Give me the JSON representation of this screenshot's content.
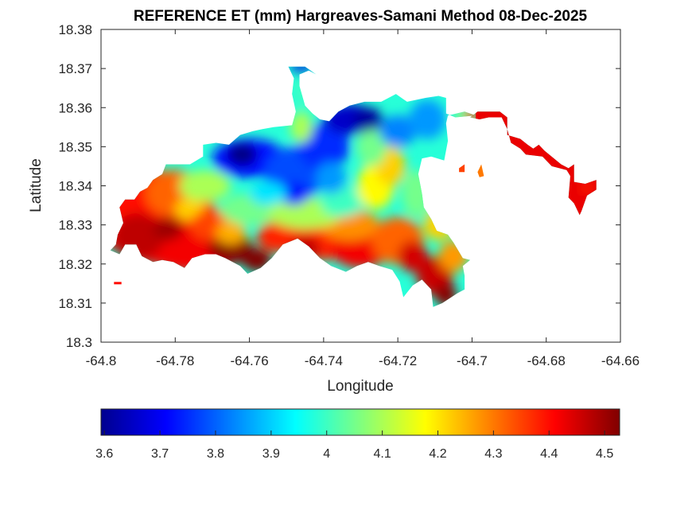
{
  "chart_data": {
    "type": "heatmap",
    "title": "REFERENCE ET (mm) Hargreaves-Samani Method  08-Dec-2025",
    "xlabel": "Longitude",
    "ylabel": "Latitude",
    "xlim": [
      -64.8,
      -64.66
    ],
    "ylim": [
      18.3,
      18.38
    ],
    "xticks": [
      -64.8,
      -64.78,
      -64.76,
      -64.74,
      -64.72,
      -64.7,
      -64.68,
      -64.66
    ],
    "xtick_labels": [
      "-64.8",
      "-64.78",
      "-64.76",
      "-64.74",
      "-64.72",
      "-64.7",
      "-64.68",
      "-64.66"
    ],
    "yticks": [
      18.3,
      18.31,
      18.32,
      18.33,
      18.34,
      18.35,
      18.36,
      18.37,
      18.38
    ],
    "ytick_labels": [
      "18.3",
      "18.31",
      "18.32",
      "18.33",
      "18.34",
      "18.35",
      "18.36",
      "18.37",
      "18.38"
    ],
    "grid": false,
    "colormap": "jet",
    "colorbar": {
      "orientation": "horizontal",
      "placement": "bottom",
      "range": [
        3.594,
        4.527
      ],
      "ticks": [
        3.6,
        3.7,
        3.8,
        3.9,
        4.0,
        4.1,
        4.2,
        4.3,
        4.4,
        4.5
      ],
      "tick_labels": [
        "3.6",
        "3.7",
        "3.8",
        "3.9",
        "4",
        "4.1",
        "4.2",
        "4.3",
        "4.4",
        "4.5"
      ]
    },
    "regions": [
      {
        "name": "west-red-zone",
        "lon": [
          -64.795,
          -64.765
        ],
        "lat": [
          18.318,
          18.345
        ],
        "value": 4.42
      },
      {
        "name": "southwest-darkred-peak",
        "lon": [
          -64.768,
          -64.758
        ],
        "lat": [
          18.318,
          18.326
        ],
        "value": 4.52
      },
      {
        "name": "northwest-blue-low",
        "lon": [
          -64.765,
          -64.755
        ],
        "lat": [
          18.345,
          18.351
        ],
        "value": 3.6
      },
      {
        "name": "central-blue",
        "lon": [
          -64.755,
          -64.735
        ],
        "lat": [
          18.335,
          18.355
        ],
        "value": 3.75
      },
      {
        "name": "north-central-blue-low",
        "lon": [
          -64.735,
          -64.72
        ],
        "lat": [
          18.353,
          18.36
        ],
        "value": 3.65
      },
      {
        "name": "north-tip-blue",
        "lon": [
          -64.749,
          -64.742
        ],
        "lat": [
          18.368,
          18.371
        ],
        "value": 3.7
      },
      {
        "name": "central-yellow-band",
        "lon": [
          -64.73,
          -64.72
        ],
        "lat": [
          18.33,
          18.345
        ],
        "value": 4.2
      },
      {
        "name": "south-orange-band",
        "lon": [
          -64.745,
          -64.705
        ],
        "lat": [
          18.318,
          18.33
        ],
        "value": 4.35
      },
      {
        "name": "southeast-darkred-peak",
        "lon": [
          -64.712,
          -64.706
        ],
        "lat": [
          18.309,
          18.314
        ],
        "value": 4.5
      },
      {
        "name": "east-tail-red",
        "lon": [
          -64.7,
          -64.664
        ],
        "lat": [
          18.332,
          18.359
        ],
        "value": 4.42
      }
    ]
  }
}
